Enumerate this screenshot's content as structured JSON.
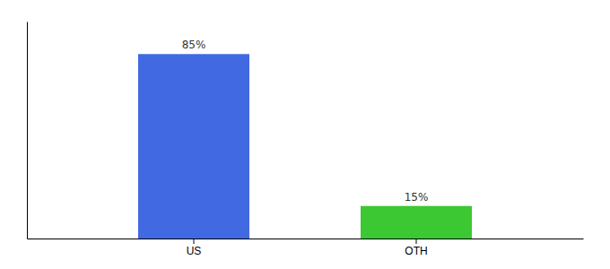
{
  "chart_data": {
    "type": "bar",
    "categories": [
      "US",
      "OTH"
    ],
    "values": [
      85,
      15
    ],
    "value_labels": [
      "85%",
      "15%"
    ],
    "colors": [
      "#4169e1",
      "#3cc832"
    ],
    "ylim": [
      0,
      100
    ],
    "data_labels": true,
    "tick_labels": "x",
    "grid": false
  }
}
